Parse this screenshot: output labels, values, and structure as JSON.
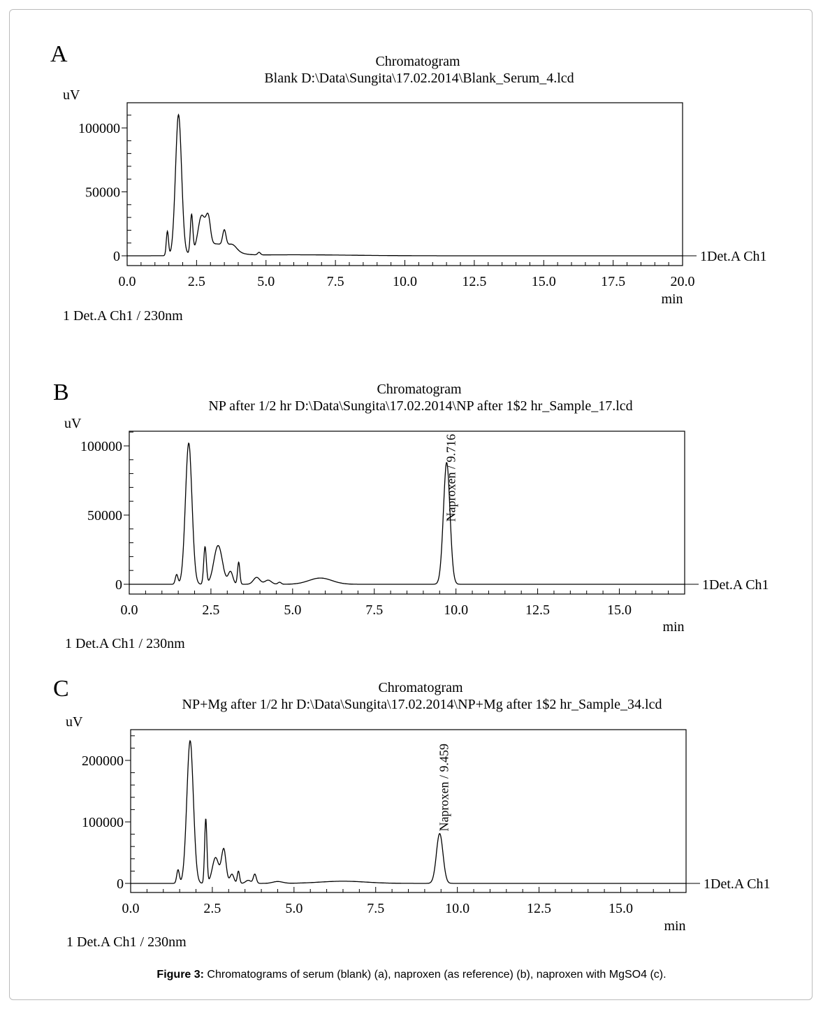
{
  "caption": {
    "label": "Figure 3:",
    "text": " Chromatograms of serum (blank) (a), naproxen (as reference) (b), naproxen with MgSO4 (c)."
  },
  "chart_data": [
    {
      "type": "line",
      "panel": "A",
      "title": "Chromatogram",
      "subtitle": "Blank D:\\Data\\Sungita\\17.02.2014\\Blank_Serum_4.lcd",
      "ylabel": "uV",
      "xlabel": "min",
      "xlim": [
        0,
        20
      ],
      "ylim": [
        -7650,
        119700
      ],
      "xticks": [
        "0.0",
        "2.5",
        "5.0",
        "7.5",
        "10.0",
        "12.5",
        "15.0",
        "17.5",
        "20.0"
      ],
      "xtick_values": [
        0,
        2.5,
        5,
        7.5,
        10,
        12.5,
        15,
        17.5,
        20
      ],
      "yticks": [
        "0",
        "50000",
        "100000"
      ],
      "ytick_values": [
        0,
        50000,
        100000
      ],
      "trace_label": "1Det.A Ch1",
      "legend": "1   Det.A Ch1 / 230nm",
      "peaks": [
        {
          "rt": 1.45,
          "height": 19000,
          "width": 0.04
        },
        {
          "rt": 1.85,
          "height": 110000,
          "width": 0.11
        },
        {
          "rt": 2.32,
          "height": 30000,
          "width": 0.045
        },
        {
          "rt": 2.68,
          "height": 26000,
          "width": 0.13
        },
        {
          "rt": 2.92,
          "height": 20000,
          "width": 0.08
        },
        {
          "rt": 3.2,
          "height": 9000,
          "width": 0.5
        },
        {
          "rt": 3.5,
          "height": 12000,
          "width": 0.06
        },
        {
          "rt": 3.8,
          "height": 4000,
          "width": 0.15
        },
        {
          "rt": 4.75,
          "height": 2000,
          "width": 0.05
        },
        {
          "rt": 6,
          "height": 800,
          "width": 2
        }
      ],
      "annotations": []
    },
    {
      "type": "line",
      "panel": "B",
      "title": "Chromatogram",
      "subtitle": "NP after 1/2 hr D:\\Data\\Sungita\\17.02.2014\\NP after 1$2 hr_Sample_17.lcd",
      "ylabel": "uV",
      "xlabel": "min",
      "xlim": [
        0,
        17
      ],
      "ylim": [
        -7070,
        110600
      ],
      "xticks": [
        "0.0",
        "2.5",
        "5.0",
        "7.5",
        "10.0",
        "12.5",
        "15.0"
      ],
      "xtick_values": [
        0,
        2.5,
        5,
        7.5,
        10,
        12.5,
        15
      ],
      "yticks": [
        "0",
        "50000",
        "100000"
      ],
      "ytick_values": [
        0,
        50000,
        100000
      ],
      "trace_label": "1Det.A Ch1",
      "legend": "1   Det.A Ch1 / 230nm",
      "peaks": [
        {
          "rt": 1.45,
          "height": 7000,
          "width": 0.04
        },
        {
          "rt": 1.82,
          "height": 102000,
          "width": 0.1
        },
        {
          "rt": 2.32,
          "height": 27000,
          "width": 0.04
        },
        {
          "rt": 2.72,
          "height": 28000,
          "width": 0.13
        },
        {
          "rt": 3.1,
          "height": 9000,
          "width": 0.07
        },
        {
          "rt": 3.35,
          "height": 16000,
          "width": 0.035
        },
        {
          "rt": 3.9,
          "height": 5000,
          "width": 0.1
        },
        {
          "rt": 4.25,
          "height": 3000,
          "width": 0.1
        },
        {
          "rt": 4.6,
          "height": 1500,
          "width": 0.05
        },
        {
          "rt": 5.85,
          "height": 4500,
          "width": 0.35
        },
        {
          "rt": 9.716,
          "height": 88000,
          "width": 0.1
        }
      ],
      "annotations": [
        {
          "text": "Naproxen / 9.716",
          "x": 9.716
        }
      ]
    },
    {
      "type": "line",
      "panel": "C",
      "title": "Chromatogram",
      "subtitle": "NP+Mg after 1/2 hr D:\\Data\\Sungita\\17.02.2014\\NP+Mg after 1$2 hr_Sample_34.lcd",
      "ylabel": "uV",
      "xlabel": "min",
      "xlim": [
        0,
        17
      ],
      "ylim": [
        -14800,
        250000
      ],
      "xticks": [
        "0.0",
        "2.5",
        "5.0",
        "7.5",
        "10.0",
        "12.5",
        "15.0"
      ],
      "xtick_values": [
        0,
        2.5,
        5,
        7.5,
        10,
        12.5,
        15
      ],
      "yticks": [
        "0",
        "100000",
        "200000"
      ],
      "ytick_values": [
        0,
        100000,
        200000
      ],
      "trace_label": "1Det.A Ch1",
      "legend": "1   Det.A Ch1 / 230nm",
      "peaks": [
        {
          "rt": 1.45,
          "height": 22000,
          "width": 0.04
        },
        {
          "rt": 1.82,
          "height": 232000,
          "width": 0.1
        },
        {
          "rt": 2.3,
          "height": 105000,
          "width": 0.035
        },
        {
          "rt": 2.6,
          "height": 42000,
          "width": 0.1
        },
        {
          "rt": 2.85,
          "height": 55000,
          "width": 0.07
        },
        {
          "rt": 3.1,
          "height": 15000,
          "width": 0.06
        },
        {
          "rt": 3.3,
          "height": 20000,
          "width": 0.035
        },
        {
          "rt": 3.6,
          "height": 5000,
          "width": 0.08
        },
        {
          "rt": 3.8,
          "height": 15000,
          "width": 0.045
        },
        {
          "rt": 4.5,
          "height": 3000,
          "width": 0.15
        },
        {
          "rt": 6.5,
          "height": 3500,
          "width": 0.7
        },
        {
          "rt": 9.459,
          "height": 81000,
          "width": 0.1
        }
      ],
      "annotations": [
        {
          "text": "Naproxen / 9.459",
          "x": 9.459
        }
      ]
    }
  ]
}
